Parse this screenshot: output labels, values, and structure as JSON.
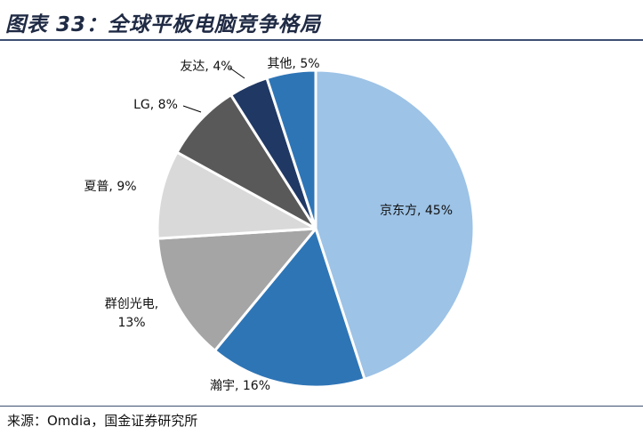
{
  "title": "图表 33：全球平板电脑竞争格局",
  "source": "来源：Omdia，国金证券研究所",
  "chart_data": {
    "type": "pie",
    "title": "图表 33：全球平板电脑竞争格局",
    "slices": [
      {
        "name": "京东方",
        "value": 45,
        "label": "京东方, 45%",
        "color": "#9dc3e6"
      },
      {
        "name": "瀚宇",
        "value": 16,
        "label": "瀚宇, 16%",
        "color": "#2e75b6"
      },
      {
        "name": "群创光电",
        "value": 13,
        "label_lines": [
          "群创光电,",
          "13%"
        ],
        "color": "#a5a5a5"
      },
      {
        "name": "夏普",
        "value": 9,
        "label": "夏普, 9%",
        "color": "#d9d9d9"
      },
      {
        "name": "LG",
        "value": 8,
        "label": "LG, 8%",
        "color": "#595959"
      },
      {
        "name": "友达",
        "value": 4,
        "label": "友达, 4%",
        "color": "#203864"
      },
      {
        "name": "其他",
        "value": 5,
        "label": "其他, 5%",
        "color": "#2e75b6"
      }
    ]
  }
}
